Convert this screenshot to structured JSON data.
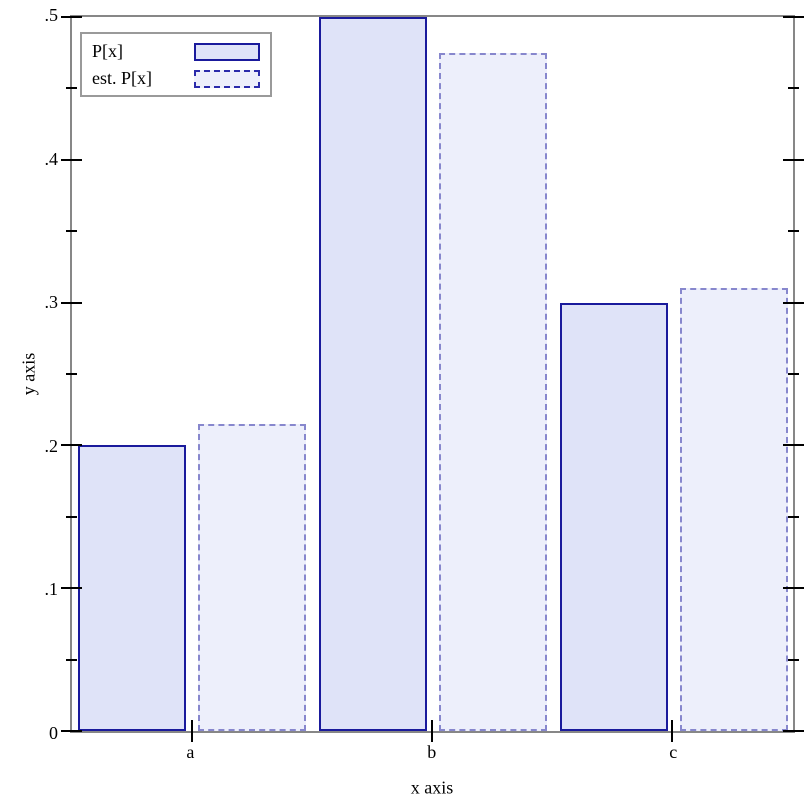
{
  "chart_data": {
    "type": "bar",
    "title": "",
    "xlabel": "x axis",
    "ylabel": "y axis",
    "categories": [
      "a",
      "b",
      "c"
    ],
    "series": [
      {
        "name": "P[x]",
        "values": [
          0.2,
          0.5,
          0.3
        ],
        "line_style": "solid",
        "fill_color": "#dfe3f8",
        "line_color": "#1a1a9c"
      },
      {
        "name": "est. P[x]",
        "values": [
          0.215,
          0.475,
          0.31
        ],
        "line_style": "dashed",
        "fill_color": "#edeffb",
        "line_color": "#8787cd",
        "legend_line_color": "#2b2bab"
      }
    ],
    "ylim": [
      0,
      0.5
    ],
    "y_major_ticks": [
      0,
      0.1,
      0.2,
      0.3,
      0.4,
      0.5
    ],
    "y_major_tick_labels": [
      "0",
      ".1",
      ".2",
      ".3",
      ".4",
      ".5"
    ],
    "y_minor_ticks": [
      0.05,
      0.15,
      0.25,
      0.35,
      0.45
    ],
    "grid": false,
    "legend_position": "top-left",
    "axis_color": "#878787",
    "tick_color": "#000000",
    "background_color": "#ffffff"
  }
}
